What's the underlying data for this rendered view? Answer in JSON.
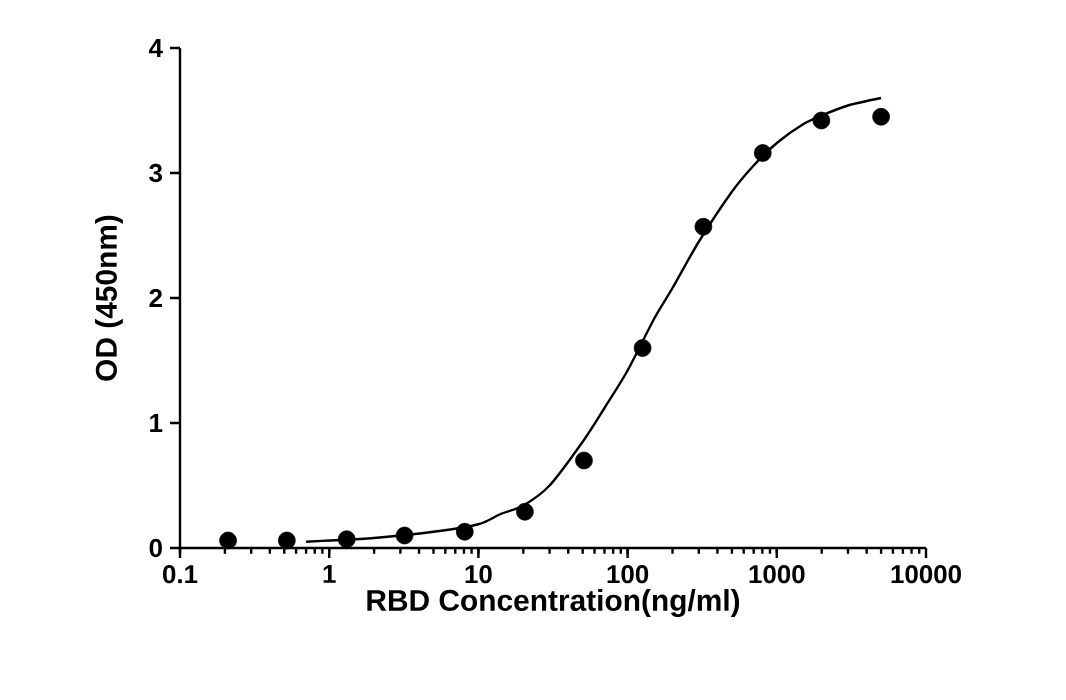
{
  "chart_data": {
    "type": "scatter",
    "xlabel": "RBD Concentration(ng/ml)",
    "ylabel": "OD (450nm)",
    "log": "x",
    "xlim": [
      0.1,
      10000
    ],
    "xticks": [
      0.1,
      1,
      10,
      100,
      1000,
      10000
    ],
    "ylim": [
      0,
      4
    ],
    "yticks": [
      0,
      1,
      2,
      3,
      4
    ],
    "series": [
      {
        "color": "#000000",
        "marker": "circle",
        "x": [
          0.21,
          0.52,
          1.31,
          3.2,
          8.1,
          20.5,
          51,
          126,
          322,
          805,
          1990,
          5000
        ],
        "values": [
          0.06,
          0.06,
          0.07,
          0.1,
          0.13,
          0.29,
          0.7,
          1.6,
          2.57,
          3.16,
          3.42,
          3.45
        ]
      },
      {
        "type": "line",
        "color": "#000000",
        "line_style": "solid",
        "x": [
          0.7,
          1,
          2,
          5,
          10,
          14,
          20,
          30,
          50,
          70,
          100,
          150,
          200,
          300,
          500,
          700,
          1000,
          1500,
          2000,
          3000,
          5000
        ],
        "values": [
          0.05,
          0.06,
          0.08,
          0.13,
          0.19,
          0.27,
          0.34,
          0.5,
          0.85,
          1.12,
          1.42,
          1.83,
          2.08,
          2.45,
          2.85,
          3.06,
          3.24,
          3.39,
          3.46,
          3.54,
          3.6
        ]
      }
    ]
  }
}
